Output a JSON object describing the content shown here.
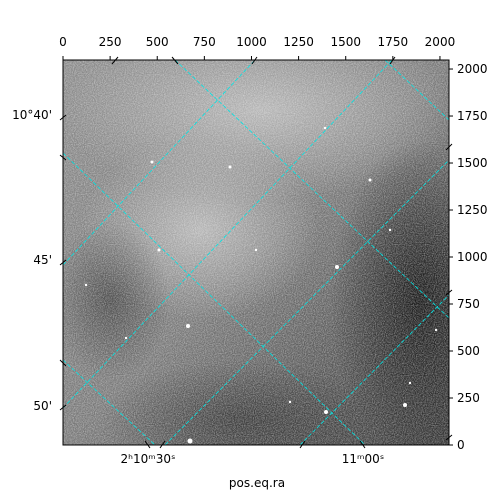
{
  "chart_data": {
    "type": "image",
    "xlabel": "pos.eq.ra",
    "xlim": [
      0,
      2048
    ],
    "xticks": [
      0,
      250,
      500,
      750,
      1000,
      1250,
      1500,
      1750,
      2000
    ],
    "ylim": [
      0,
      2048
    ],
    "yticks": [
      0,
      250,
      500,
      750,
      1000,
      1250,
      1500,
      1750,
      2000
    ],
    "wcs_dec_labels": [
      "10°40'",
      "45'",
      "50'"
    ],
    "wcs_ra_labels": [
      "2ʰ10ᵐ30ˢ",
      "11ᵐ00ˢ"
    ],
    "grid_color": "#00e5e5"
  }
}
